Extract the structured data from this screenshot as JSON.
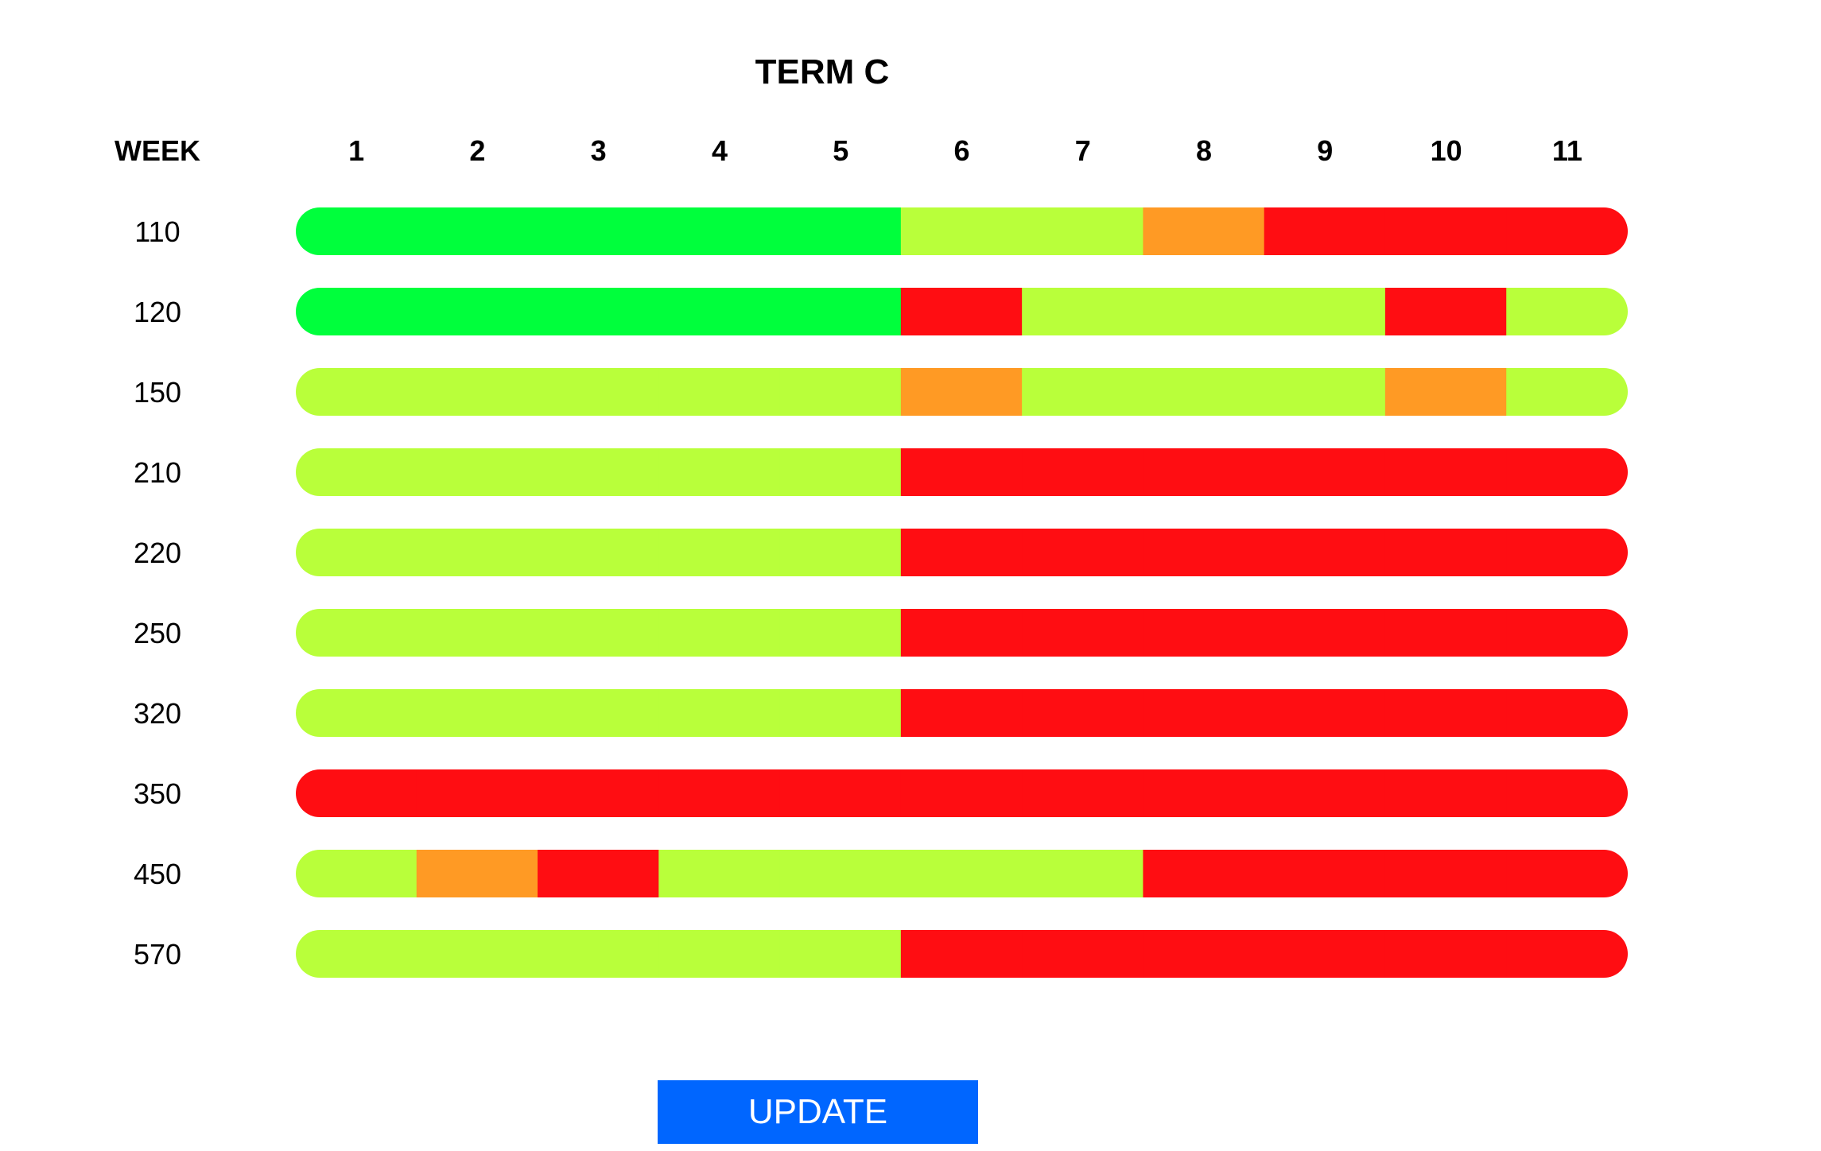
{
  "chart_data": {
    "type": "timeline",
    "title": "TERM C",
    "row_header": "WEEK",
    "weeks": [
      "1",
      "2",
      "3",
      "4",
      "5",
      "6",
      "7",
      "8",
      "9",
      "10",
      "11"
    ],
    "rows": [
      {
        "label": "110",
        "statuses": [
          "green",
          "green",
          "green",
          "green",
          "green",
          "lime",
          "lime",
          "orange",
          "red",
          "red",
          "red"
        ]
      },
      {
        "label": "120",
        "statuses": [
          "green",
          "green",
          "green",
          "green",
          "green",
          "red",
          "lime",
          "lime",
          "lime",
          "red",
          "lime"
        ]
      },
      {
        "label": "150",
        "statuses": [
          "lime",
          "lime",
          "lime",
          "lime",
          "lime",
          "orange",
          "lime",
          "lime",
          "lime",
          "orange",
          "lime"
        ]
      },
      {
        "label": "210",
        "statuses": [
          "lime",
          "lime",
          "lime",
          "lime",
          "lime",
          "red",
          "red",
          "red",
          "red",
          "red",
          "red"
        ]
      },
      {
        "label": "220",
        "statuses": [
          "lime",
          "lime",
          "lime",
          "lime",
          "lime",
          "red",
          "red",
          "red",
          "red",
          "red",
          "red"
        ]
      },
      {
        "label": "250",
        "statuses": [
          "lime",
          "lime",
          "lime",
          "lime",
          "lime",
          "red",
          "red",
          "red",
          "red",
          "red",
          "red"
        ]
      },
      {
        "label": "320",
        "statuses": [
          "lime",
          "lime",
          "lime",
          "lime",
          "lime",
          "red",
          "red",
          "red",
          "red",
          "red",
          "red"
        ]
      },
      {
        "label": "350",
        "statuses": [
          "red",
          "red",
          "red",
          "red",
          "red",
          "red",
          "red",
          "red",
          "red",
          "red",
          "red"
        ]
      },
      {
        "label": "450",
        "statuses": [
          "lime",
          "orange",
          "red",
          "lime",
          "lime",
          "lime",
          "lime",
          "red",
          "red",
          "red",
          "red"
        ]
      },
      {
        "label": "570",
        "statuses": [
          "lime",
          "lime",
          "lime",
          "lime",
          "lime",
          "red",
          "red",
          "red",
          "red",
          "red",
          "red"
        ]
      }
    ],
    "colors": {
      "green": "#00FF3C",
      "lime": "#B9FF3A",
      "orange": "#FF9A24",
      "red": "#FF0D12"
    }
  },
  "update_button": {
    "label": "UPDATE",
    "color": "#0066FF"
  }
}
